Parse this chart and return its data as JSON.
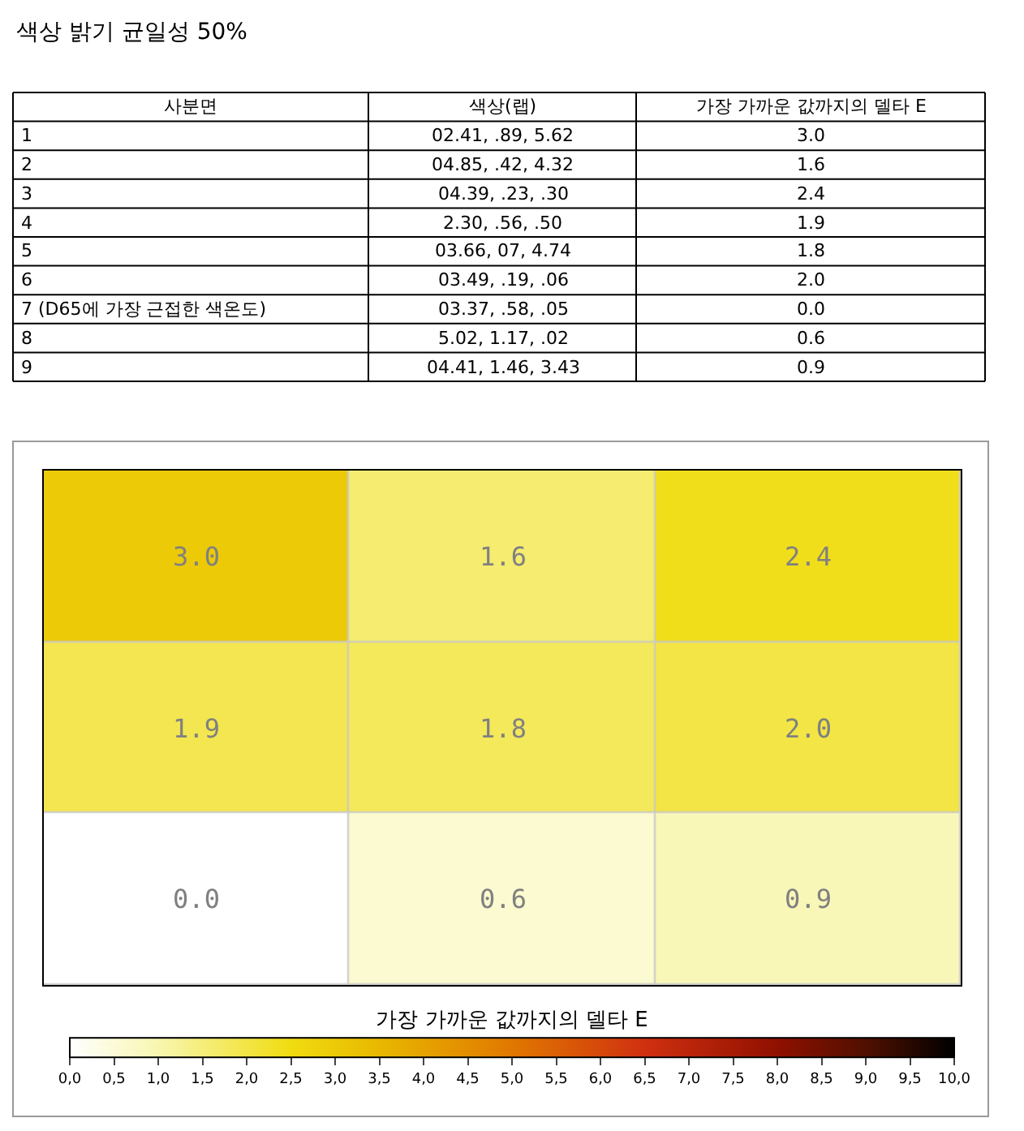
{
  "chart_data": [
    {
      "type": "other",
      "title": "색상 밝기 균일성 50%",
      "annotations": [
        "사분면",
        "색상(랩)",
        "가장 가까운 값까지의 델타 E",
        "1",
        "02.41, .89, 5.62",
        "3.0",
        "2",
        "04.85, .42, 4.32",
        "1.6",
        "3",
        "04.39, .23, .30",
        "2.4",
        "4",
        "2.30, .56, .50",
        "1.9",
        "5",
        "03.66, 07, 4.74",
        "1.8",
        "6",
        "03.49, .19, .06",
        "2.0",
        "7 (D65에 가장 근접한 색온도)",
        "03.37, .58, .05",
        "0.0",
        "8",
        "5.02, 1.17, .02",
        "0.6",
        "9",
        "04.41, 1.46, 3.43",
        "0.9"
      ]
    },
    {
      "type": "heatmap",
      "clabel": "가장 가까운 값까지의 델타 E",
      "categories": [
        null,
        null,
        null
      ],
      "y_categories": [
        null,
        null,
        null
      ],
      "cells": [
        [
          3.0,
          1.6,
          2.4
        ],
        [
          1.9,
          1.8,
          2.0
        ],
        [
          0.0,
          0.6,
          0.9
        ]
      ],
      "clim": [
        0,
        10
      ],
      "cticks": [
        {
          "value": 0,
          "label": "0,0"
        },
        {
          "value": 0.5,
          "label": "0,5"
        },
        {
          "value": 1,
          "label": "1,0"
        },
        {
          "value": 1.5,
          "label": "1,5"
        },
        {
          "value": 2,
          "label": "2,0"
        },
        {
          "value": 2.5,
          "label": "2,5"
        },
        {
          "value": 3,
          "label": "3,0"
        },
        {
          "value": 3.5,
          "label": "3,5"
        },
        {
          "value": 4,
          "label": "4,0"
        },
        {
          "value": 4.5,
          "label": "4,5"
        },
        {
          "value": 5,
          "label": "5,0"
        },
        {
          "value": 5.5,
          "label": "5,5"
        },
        {
          "value": 6,
          "label": "6,0"
        },
        {
          "value": 6.5,
          "label": "6,5"
        },
        {
          "value": 7,
          "label": "7,0"
        },
        {
          "value": 7.5,
          "label": "7,5"
        },
        {
          "value": 8,
          "label": "8,0"
        },
        {
          "value": 8.5,
          "label": "8,5"
        },
        {
          "value": 9,
          "label": "9,0"
        },
        {
          "value": 9.5,
          "label": "9,5"
        },
        {
          "value": 10,
          "label": "10,0"
        }
      ],
      "cell_labels": [
        [
          "3.0",
          "1.6",
          "2.4"
        ],
        [
          "1.9",
          "1.8",
          "2.0"
        ],
        [
          "0.0",
          "0.6",
          "0.9"
        ]
      ]
    }
  ]
}
